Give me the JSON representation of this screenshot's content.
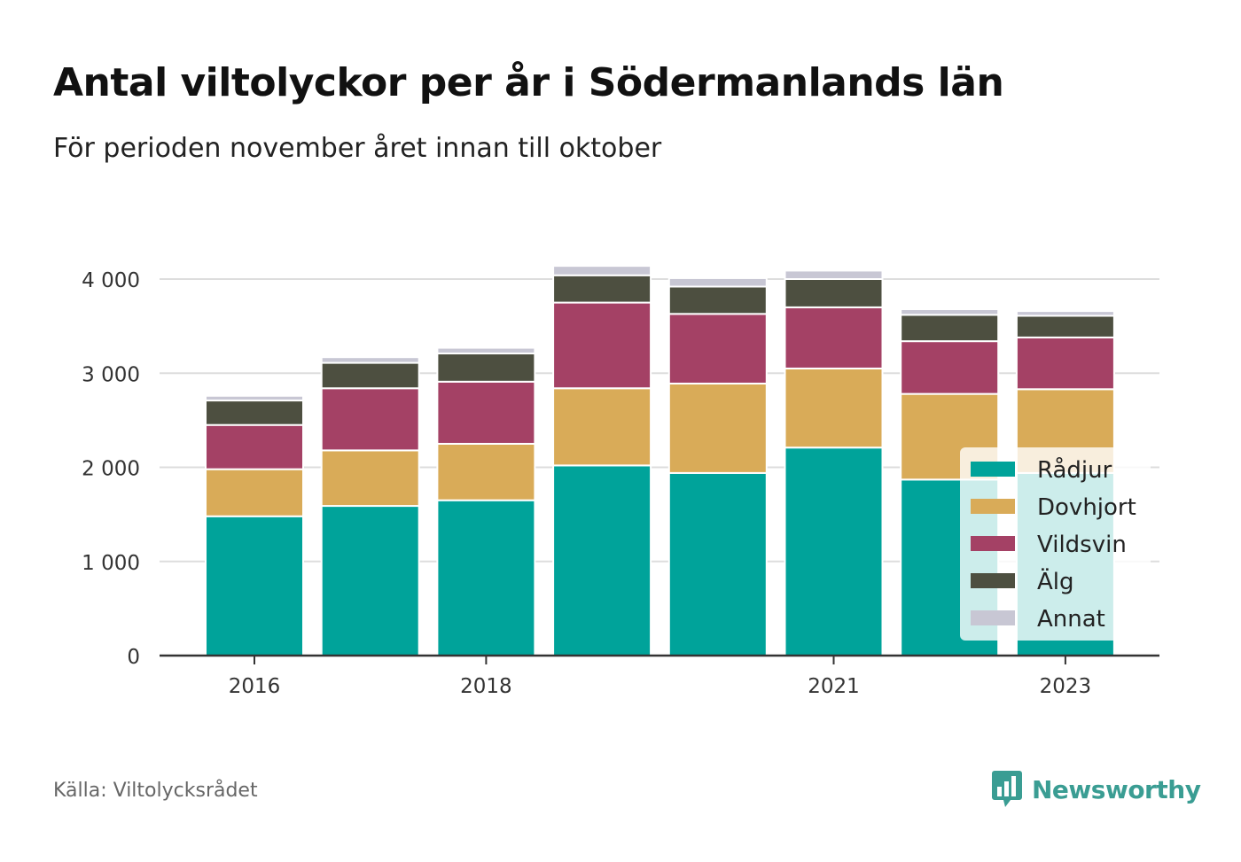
{
  "title": "Antal viltolyckor per år i Södermanlands län",
  "subtitle": "För perioden november året innan till oktober",
  "source": "Källa: Viltolycksrådet",
  "brand": "Newsworthy",
  "colors": {
    "Rådjur": "#00a39a",
    "Dovhjort": "#d9ab58",
    "Vildsvin": "#a44165",
    "Älg": "#4d4f40",
    "Annat": "#c8c7d4",
    "brand": "#3a9d93"
  },
  "chart_data": {
    "type": "bar",
    "stacked": true,
    "title": "Antal viltolyckor per år i Södermanlands län",
    "subtitle": "För perioden november året innan till oktober",
    "xlabel": "",
    "ylabel": "",
    "categories": [
      "2016",
      "2017",
      "2018",
      "2019",
      "2020",
      "2021",
      "2022",
      "2023"
    ],
    "x_tick_labels": [
      "2016",
      "",
      "2018",
      "",
      "",
      "2021",
      "",
      "2023"
    ],
    "y_ticks": [
      0,
      1000,
      2000,
      3000,
      4000
    ],
    "y_tick_labels": [
      "0",
      "1 000",
      "2 000",
      "3 000",
      "4 000"
    ],
    "ylim": [
      0,
      4200
    ],
    "grid": true,
    "legend_position": "bottom-right",
    "series": [
      {
        "name": "Rådjur",
        "values": [
          1480,
          1590,
          1650,
          2020,
          1940,
          2210,
          1870,
          1940
        ]
      },
      {
        "name": "Dovhjort",
        "values": [
          500,
          590,
          600,
          820,
          950,
          840,
          910,
          890
        ]
      },
      {
        "name": "Vildsvin",
        "values": [
          470,
          660,
          660,
          910,
          740,
          650,
          560,
          550
        ]
      },
      {
        "name": "Älg",
        "values": [
          260,
          270,
          300,
          290,
          290,
          300,
          280,
          230
        ]
      },
      {
        "name": "Annat",
        "values": [
          50,
          60,
          60,
          100,
          90,
          90,
          60,
          50
        ]
      }
    ]
  }
}
